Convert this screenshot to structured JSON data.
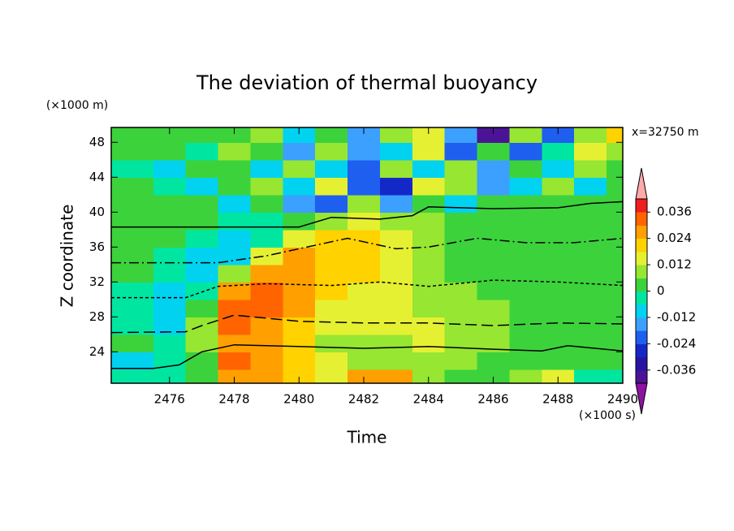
{
  "chart_data": {
    "type": "contour",
    "title": "The deviation of thermal buoyancy",
    "x_label": "Time",
    "y_label": "Z coordinate",
    "x_unit": "(×1000 s)",
    "y_unit": "(×1000 m)",
    "annotation": "x=32750 m",
    "xlim": [
      2474.2,
      2490
    ],
    "xticks": [
      2476,
      2478,
      2480,
      2482,
      2484,
      2486,
      2488,
      2490
    ],
    "ylim": [
      20.4,
      49.7
    ],
    "yticks": [
      24,
      28,
      32,
      36,
      40,
      44,
      48
    ],
    "x": [
      2475,
      2476,
      2477,
      2478,
      2479,
      2480,
      2481,
      2482,
      2483,
      2484,
      2485,
      2486,
      2487,
      2488,
      2489,
      2490
    ],
    "y": [
      21,
      23,
      25,
      27,
      29,
      31,
      33,
      35,
      37,
      39,
      41,
      43,
      45,
      47,
      49
    ],
    "z": [
      [
        0,
        0,
        0.006,
        0.03,
        0.03,
        0.02,
        0.015,
        0.03,
        0.03,
        0.01,
        0.005,
        0.005,
        0.01,
        0.015,
        0,
        0
      ],
      [
        -0.006,
        0,
        0.006,
        0.035,
        0.03,
        0.02,
        0.015,
        0.01,
        0.012,
        0.01,
        0.008,
        0.006,
        0.006,
        0.004,
        0.003,
        0.003
      ],
      [
        0.003,
        -0.003,
        0.01,
        0.03,
        0.025,
        0.02,
        0.012,
        0.01,
        0.012,
        0.014,
        0.01,
        0.008,
        0.005,
        0.003,
        0.003,
        0.003
      ],
      [
        0,
        -0.006,
        0.012,
        0.035,
        0.03,
        0.022,
        0.015,
        0.015,
        0.015,
        0.014,
        0.01,
        0.008,
        0.006,
        0.004,
        0.003,
        0.004
      ],
      [
        -0.003,
        -0.006,
        0.005,
        0.032,
        0.035,
        0.025,
        0.018,
        0.015,
        0.014,
        0.012,
        0.01,
        0.008,
        0.006,
        0.004,
        0.004,
        0.004
      ],
      [
        0,
        -0.006,
        -0.003,
        0.025,
        0.035,
        0.03,
        0.02,
        0.016,
        0.015,
        0.012,
        0.008,
        0.006,
        0.004,
        0.002,
        0.003,
        0.003
      ],
      [
        0.003,
        -0.003,
        -0.009,
        0.012,
        0.03,
        0.03,
        0.022,
        0.02,
        0.015,
        0.01,
        0.006,
        0.004,
        0.002,
        0.002,
        0.003,
        0.004
      ],
      [
        0.004,
        0,
        -0.006,
        -0.009,
        0.018,
        0.025,
        0.022,
        0.02,
        0.016,
        0.01,
        0.006,
        0.003,
        0.002,
        0.002,
        0.004,
        0.004
      ],
      [
        0.004,
        0.003,
        0,
        -0.006,
        -0.003,
        0.018,
        0.022,
        0.02,
        0.015,
        0.01,
        0.005,
        0.003,
        0.002,
        0.003,
        0.004,
        0.005
      ],
      [
        0.003,
        0.004,
        0.003,
        0,
        -0.003,
        0.003,
        0.012,
        0.015,
        0.01,
        0.008,
        0.004,
        0.003,
        0.003,
        0.004,
        0.004,
        0.005
      ],
      [
        0.004,
        0.002,
        0.003,
        -0.006,
        0.006,
        -0.012,
        -0.018,
        0.012,
        -0.012,
        0.004,
        -0.006,
        0.004,
        0.003,
        0.005,
        0.004,
        0.006
      ],
      [
        0.002,
        0,
        -0.009,
        0.003,
        0.01,
        -0.009,
        0.015,
        -0.018,
        -0.024,
        0.015,
        0.008,
        -0.012,
        -0.006,
        0.012,
        -0.009,
        0.006
      ],
      [
        -0.003,
        -0.009,
        0.003,
        0.006,
        -0.009,
        0.012,
        -0.006,
        -0.018,
        0.01,
        -0.009,
        0.012,
        -0.015,
        0.006,
        -0.009,
        0.012,
        0.006
      ],
      [
        0.003,
        0.004,
        -0.003,
        0.012,
        0.006,
        -0.012,
        0.012,
        -0.015,
        -0.006,
        0.018,
        -0.018,
        0.006,
        -0.021,
        -0.003,
        0.015,
        0.01
      ],
      [
        0.003,
        0.002,
        0.003,
        0.006,
        0.012,
        -0.006,
        0.003,
        -0.015,
        0.012,
        0.015,
        -0.012,
        -0.036,
        0.01,
        -0.018,
        0.012,
        0.02
      ]
    ],
    "levels": [
      -0.042,
      -0.036,
      -0.03,
      -0.024,
      -0.018,
      -0.012,
      -0.006,
      0,
      0.006,
      0.012,
      0.018,
      0.024,
      0.03,
      0.036,
      0.042
    ],
    "colors": [
      "#4b1496",
      "#2814a0",
      "#1428c8",
      "#1e5ff0",
      "#3ca0ff",
      "#00d2f0",
      "#00e6a0",
      "#3cd23c",
      "#96e632",
      "#e6f032",
      "#ffd200",
      "#ffa000",
      "#ff6400",
      "#f01e1e"
    ],
    "under_color": "#8c14a0",
    "over_color": "#ffaaaa",
    "cticks": [
      -0.036,
      -0.024,
      -0.012,
      0,
      0.012,
      0.024,
      0.036
    ],
    "contours": [
      {
        "style": "solid",
        "x": [
          2474.2,
          2480,
          2481,
          2482.5,
          2483.5,
          2484,
          2486,
          2488,
          2489,
          2490
        ],
        "y": [
          38.3,
          38.3,
          39.4,
          39.2,
          39.6,
          40.6,
          40.4,
          40.5,
          41,
          41.2
        ]
      },
      {
        "style": "dashdot",
        "x": [
          2474.2,
          2477.5,
          2479,
          2480.5,
          2481.5,
          2483,
          2484,
          2485.5,
          2487,
          2488.5,
          2490
        ],
        "y": [
          34.2,
          34.2,
          35,
          36.2,
          37,
          35.8,
          36,
          37,
          36.5,
          36.5,
          37
        ]
      },
      {
        "style": "dotted",
        "x": [
          2474.2,
          2476.5,
          2477.5,
          2479,
          2481,
          2482.5,
          2484,
          2486,
          2488,
          2490
        ],
        "y": [
          30.2,
          30.2,
          31.5,
          31.8,
          31.6,
          32,
          31.5,
          32.2,
          32,
          31.6
        ]
      },
      {
        "style": "dashed",
        "x": [
          2474.2,
          2476.5,
          2477,
          2478,
          2480,
          2482,
          2484,
          2486,
          2488,
          2490
        ],
        "y": [
          26.2,
          26.3,
          27,
          28.2,
          27.5,
          27.3,
          27.3,
          27,
          27.3,
          27.2
        ]
      },
      {
        "style": "solid",
        "x": [
          2474.2,
          2475.5,
          2476.3,
          2477,
          2478,
          2480,
          2482,
          2484,
          2486,
          2487.5,
          2488.3,
          2490
        ],
        "y": [
          22.1,
          22.1,
          22.5,
          24,
          24.8,
          24.6,
          24.4,
          24.6,
          24.3,
          24.1,
          24.7,
          24.1
        ]
      }
    ]
  }
}
